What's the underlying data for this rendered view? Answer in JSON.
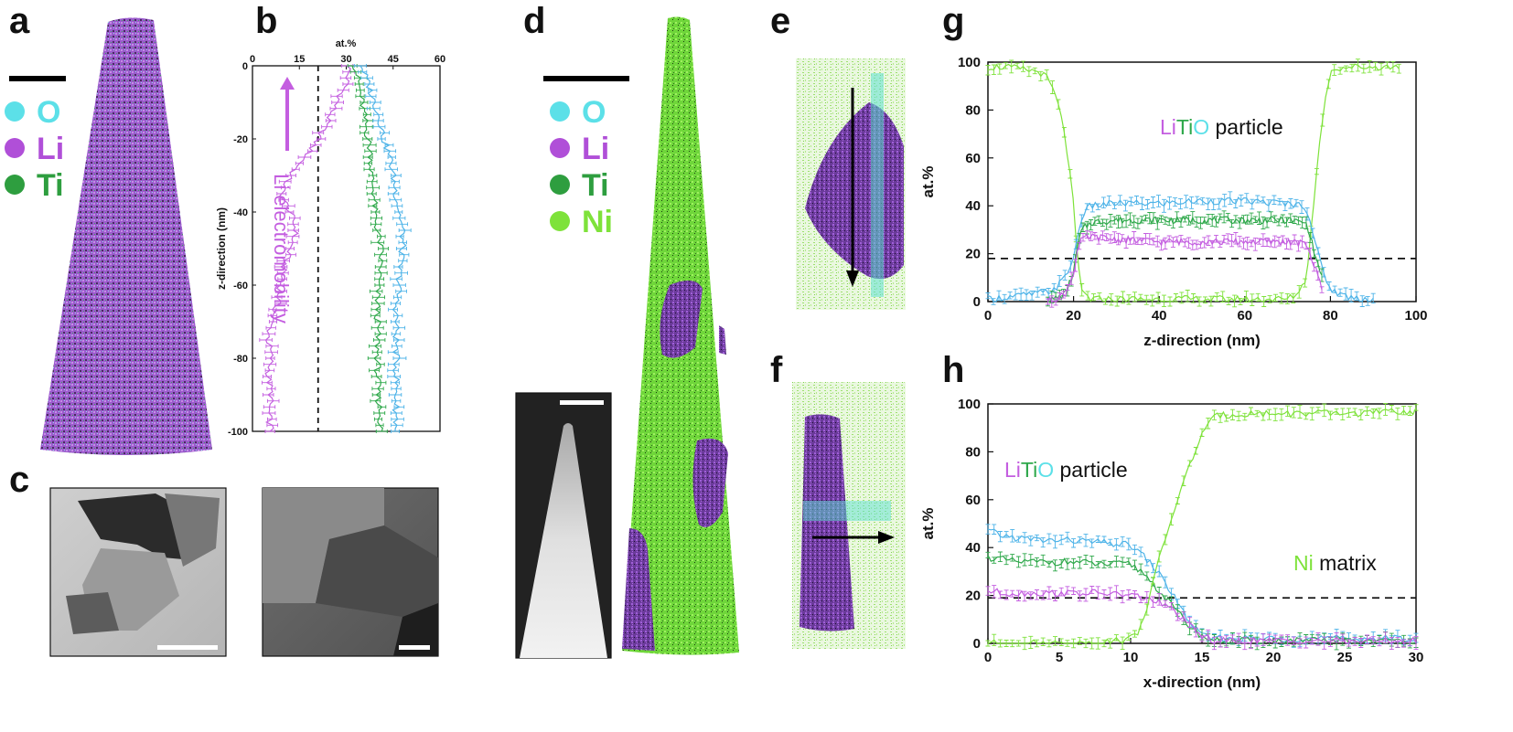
{
  "panel_labels": {
    "a": "a",
    "b": "b",
    "c": "c",
    "d": "d",
    "e": "e",
    "f": "f",
    "g": "g",
    "h": "h"
  },
  "legend_a": [
    {
      "label": "O",
      "color": "#5ce0e8"
    },
    {
      "label": "Li",
      "color": "#b04fd8"
    },
    {
      "label": "Ti",
      "color": "#2e9e3f"
    }
  ],
  "legend_d": [
    {
      "label": "O",
      "color": "#5ce0e8"
    },
    {
      "label": "Li",
      "color": "#b04fd8"
    },
    {
      "label": "Ti",
      "color": "#2e9e3f"
    },
    {
      "label": "Ni",
      "color": "#7ee23a"
    }
  ],
  "colors": {
    "O": "#4db3e8",
    "Li": "#c45ee0",
    "Ti": "#2ea84a",
    "Ni": "#7ee23a"
  },
  "panel_b": {
    "xlabel": "at.%",
    "ylabel": "z-direction (nm)",
    "xticks": [
      "0",
      "15",
      "30",
      "45",
      "60"
    ],
    "yticks": [
      "0",
      "-20",
      "-40",
      "-60",
      "-80",
      "-100"
    ],
    "annotation": "Li electromobility"
  },
  "panel_g": {
    "annotation": {
      "p1": "Li",
      "p2": "Ti",
      "p3": "O",
      "p4": " particle"
    },
    "xlabel": "z-direction (nm)",
    "ylabel": "at.%",
    "xticks": [
      "0",
      "20",
      "40",
      "60",
      "80",
      "100"
    ],
    "yticks": [
      "0",
      "20",
      "40",
      "60",
      "80",
      "100"
    ]
  },
  "panel_h": {
    "annotation": {
      "p1": "Li",
      "p2": "Ti",
      "p3": "O",
      "p4": " particle"
    },
    "annotation2": {
      "p1": "Ni",
      "p2": " matrix"
    },
    "xlabel": "x-direction (nm)",
    "ylabel": "at.%",
    "xticks": [
      "0",
      "5",
      "10",
      "15",
      "20",
      "25",
      "30"
    ],
    "yticks": [
      "0",
      "20",
      "40",
      "60",
      "80",
      "100"
    ]
  },
  "chart_data": [
    {
      "type": "line",
      "panel": "b",
      "xlabel": "at.%",
      "ylabel": "z-direction (nm)",
      "xlim": [
        0,
        60
      ],
      "ylim": [
        -100,
        0
      ],
      "reference_line_x": 21,
      "series": [
        {
          "name": "Li",
          "z": [
            0,
            -5,
            -10,
            -15,
            -20,
            -25,
            -30,
            -35,
            -40,
            -45,
            -50,
            -55,
            -60,
            -65,
            -70,
            -75,
            -80,
            -85,
            -90,
            -95,
            -100
          ],
          "values": [
            31,
            30,
            27,
            24,
            21,
            17,
            12,
            9,
            12,
            14,
            12,
            10,
            9,
            8,
            6,
            5,
            6,
            5,
            6,
            5,
            6
          ]
        },
        {
          "name": "Ti",
          "z": [
            0,
            -5,
            -10,
            -15,
            -20,
            -25,
            -30,
            -35,
            -40,
            -45,
            -50,
            -55,
            -60,
            -65,
            -70,
            -75,
            -80,
            -85,
            -90,
            -95,
            -100
          ],
          "values": [
            33,
            34,
            35,
            36,
            37,
            38,
            38,
            39,
            39,
            40,
            41,
            41,
            40,
            40,
            40,
            40,
            40,
            40,
            40,
            41,
            41
          ]
        },
        {
          "name": "O",
          "z": [
            0,
            -5,
            -10,
            -15,
            -20,
            -25,
            -30,
            -35,
            -40,
            -45,
            -50,
            -55,
            -60,
            -65,
            -70,
            -75,
            -80,
            -85,
            -90,
            -95,
            -100
          ],
          "values": [
            35,
            37,
            39,
            41,
            42,
            44,
            45,
            46,
            47,
            48,
            48,
            47,
            47,
            46,
            46,
            46,
            46,
            46,
            46,
            46,
            46
          ]
        }
      ]
    },
    {
      "type": "line",
      "panel": "g",
      "xlabel": "z-direction (nm)",
      "ylabel": "at.%",
      "xlim": [
        0,
        100
      ],
      "ylim": [
        0,
        100
      ],
      "reference_line_y": 18,
      "series": [
        {
          "name": "Ni",
          "x": [
            0,
            4,
            8,
            12,
            14,
            16,
            18,
            20,
            21,
            22,
            24,
            30,
            40,
            50,
            60,
            70,
            72,
            74,
            75,
            76,
            78,
            80,
            84,
            90,
            96
          ],
          "values": [
            98,
            98,
            97,
            96,
            93,
            85,
            70,
            40,
            15,
            4,
            1,
            1,
            1,
            1,
            1,
            1,
            3,
            8,
            20,
            40,
            75,
            97,
            98,
            98,
            98
          ]
        },
        {
          "name": "O",
          "x": [
            0,
            5,
            10,
            14,
            16,
            18,
            20,
            21,
            22,
            24,
            30,
            40,
            50,
            60,
            70,
            74,
            75,
            76,
            78,
            80,
            84,
            90
          ],
          "values": [
            1,
            2,
            3,
            4,
            6,
            10,
            18,
            28,
            36,
            40,
            41,
            41,
            42,
            42,
            41,
            40,
            36,
            28,
            14,
            5,
            2,
            1
          ]
        },
        {
          "name": "Ti",
          "x": [
            14,
            18,
            20,
            21,
            22,
            24,
            30,
            40,
            50,
            60,
            70,
            74,
            75,
            76,
            78
          ],
          "values": [
            0,
            3,
            12,
            24,
            30,
            33,
            34,
            34,
            34,
            34,
            34,
            33,
            30,
            22,
            10
          ]
        },
        {
          "name": "Li",
          "x": [
            14,
            18,
            20,
            21,
            22,
            24,
            30,
            40,
            50,
            60,
            70,
            74,
            75,
            76,
            78
          ],
          "values": [
            0,
            3,
            12,
            22,
            26,
            27,
            26,
            25,
            25,
            25,
            25,
            24,
            22,
            16,
            6
          ]
        }
      ]
    },
    {
      "type": "line",
      "panel": "h",
      "xlabel": "x-direction (nm)",
      "ylabel": "at.%",
      "xlim": [
        0,
        30
      ],
      "ylim": [
        0,
        100
      ],
      "reference_line_y": 19,
      "series": [
        {
          "name": "O",
          "x": [
            0,
            1,
            2,
            4,
            6,
            8,
            10,
            11,
            12,
            13,
            14,
            15,
            16,
            20,
            25,
            30
          ],
          "values": [
            47,
            45,
            44,
            43,
            43,
            42,
            41,
            36,
            29,
            20,
            10,
            3,
            2,
            2,
            2,
            2
          ]
        },
        {
          "name": "Ti",
          "x": [
            0,
            1,
            2,
            4,
            6,
            8,
            10,
            11,
            12,
            13,
            14,
            15,
            16,
            20,
            25,
            30
          ],
          "values": [
            36,
            35,
            34,
            34,
            34,
            33,
            33,
            29,
            22,
            15,
            8,
            3,
            1,
            1,
            1,
            1
          ]
        },
        {
          "name": "Li",
          "x": [
            0,
            1,
            2,
            4,
            6,
            8,
            10,
            11,
            12,
            13,
            14,
            15,
            16,
            20,
            25,
            30
          ],
          "values": [
            22,
            21,
            21,
            21,
            21,
            21,
            20,
            19,
            17,
            14,
            8,
            3,
            1,
            1,
            1,
            1
          ]
        },
        {
          "name": "Ni",
          "x": [
            0,
            4,
            8,
            9,
            10,
            10.5,
            11,
            12,
            13,
            14,
            15,
            16,
            18,
            20,
            25,
            30
          ],
          "values": [
            0,
            0,
            0,
            1,
            2,
            5,
            12,
            35,
            55,
            72,
            88,
            95,
            96,
            96,
            96,
            97
          ]
        }
      ]
    }
  ]
}
